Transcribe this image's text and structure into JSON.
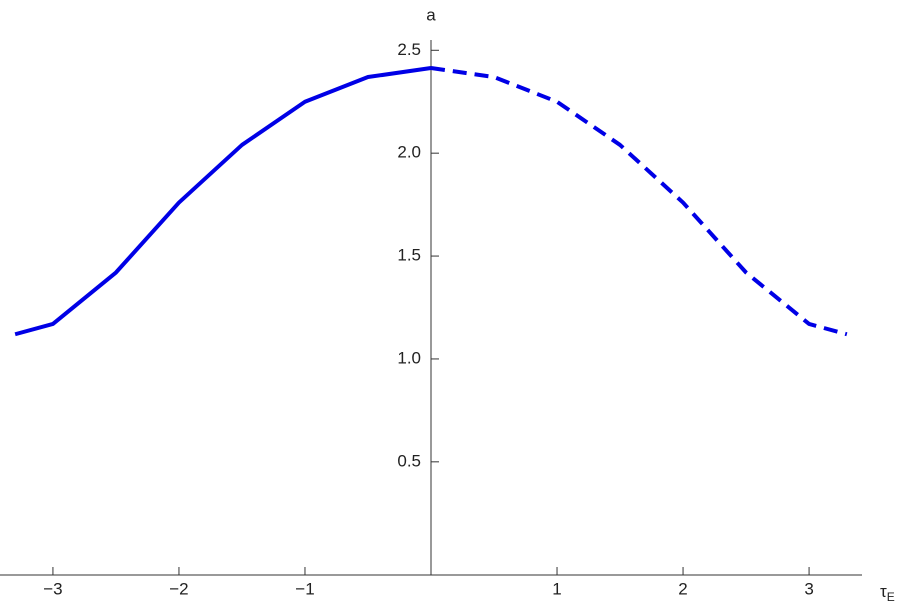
{
  "chart_data": {
    "type": "line",
    "ylabel": "a",
    "xlabel": "τ",
    "xlabel_subscript": "E",
    "xlim": [
      -3.42,
      3.42
    ],
    "ylim": [
      -0.05,
      2.55
    ],
    "xticks": [
      {
        "value": -3,
        "label": "−3"
      },
      {
        "value": -2,
        "label": "−2"
      },
      {
        "value": -1,
        "label": "−1"
      },
      1,
      2,
      3
    ],
    "yticks": [
      0.5,
      {
        "value": 1,
        "label": "1.0"
      },
      1.5,
      {
        "value": 2,
        "label": "2.0"
      },
      2.5
    ],
    "series": [
      {
        "color": "#0000e6",
        "style": "solid",
        "x": [
          -3.3,
          -3.0,
          -2.5,
          -2.0,
          -1.5,
          -1.0,
          -0.5,
          0
        ],
        "values": [
          1.12,
          1.17,
          1.42,
          1.76,
          2.04,
          2.25,
          2.37,
          2.414
        ]
      },
      {
        "color": "#0000e6",
        "style": "dashed",
        "x": [
          0,
          0.5,
          1.0,
          1.5,
          2.0,
          2.5,
          3.0,
          3.3
        ],
        "values": [
          2.414,
          2.37,
          2.25,
          2.04,
          1.76,
          1.42,
          1.17,
          1.12
        ]
      }
    ]
  }
}
